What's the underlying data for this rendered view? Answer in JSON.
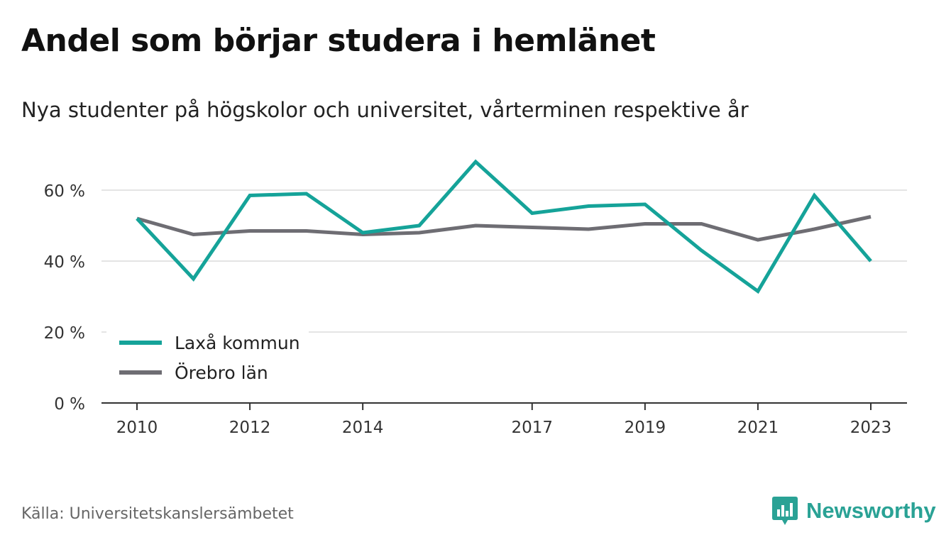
{
  "title": "Andel som börjar studera i hemlänet",
  "subtitle": "Nya studenter på högskolor och universitet, vårterminen respektive år",
  "source": "Källa: Universitetskanslersämbetet",
  "brand": {
    "name": "Newsworthy",
    "icon": "bar-chart-speech-bubble-icon",
    "color": "#2aa295"
  },
  "chart_data": {
    "type": "line",
    "x": [
      2010,
      2011,
      2012,
      2013,
      2014,
      2015,
      2016,
      2017,
      2018,
      2019,
      2020,
      2021,
      2022,
      2023
    ],
    "x_tick_labels": [
      "2010",
      "2012",
      "2014",
      "2017",
      "2019",
      "2021",
      "2023"
    ],
    "y_ticks": [
      0,
      20,
      40,
      60
    ],
    "y_tick_labels": [
      "0 %",
      "20 %",
      "40 %",
      "60 %"
    ],
    "ylim": [
      0,
      70
    ],
    "grid": true,
    "legend_position": "bottom-left",
    "series": [
      {
        "name": "Laxå kommun",
        "color": "#15a399",
        "values": [
          52,
          35,
          58.5,
          59,
          48,
          50,
          68,
          53.5,
          55.5,
          56,
          43,
          31.5,
          58.5,
          40
        ]
      },
      {
        "name": "Örebro län",
        "color": "#6e6d73",
        "values": [
          52,
          47.5,
          48.5,
          48.5,
          47.5,
          48,
          50,
          49.5,
          49,
          50.5,
          50.5,
          46,
          49,
          52.5
        ]
      }
    ]
  }
}
